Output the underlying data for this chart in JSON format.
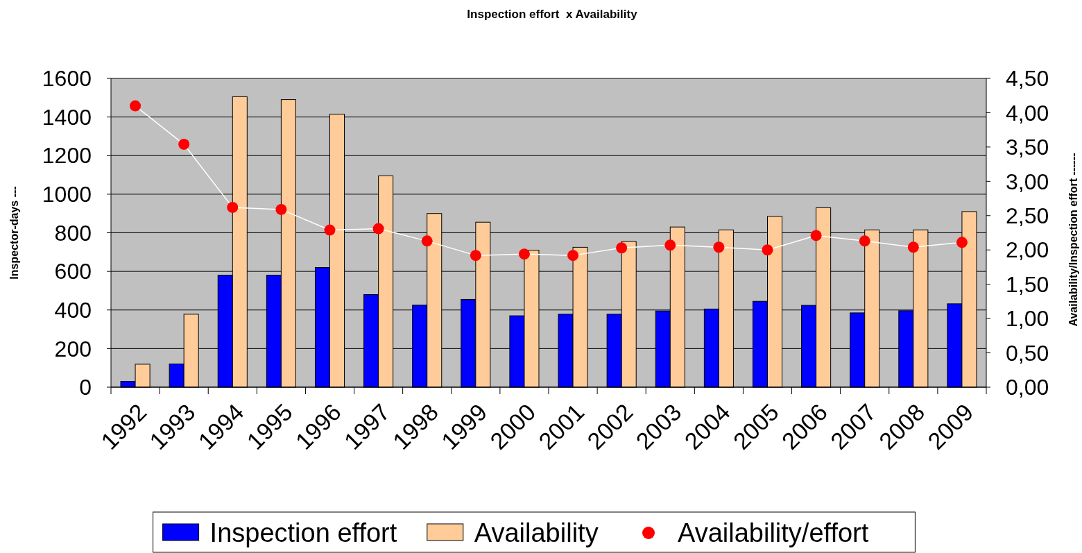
{
  "chart_data": {
    "type": "bar",
    "title": "Inspection effort  x Availability",
    "ylabel": "Inspector-days ---",
    "y2label": "Availability/Inspection effort ------",
    "categories": [
      "1992",
      "1993",
      "1994",
      "1995",
      "1996",
      "1997",
      "1998",
      "1999",
      "2000",
      "2001",
      "2002",
      "2003",
      "2004",
      "2005",
      "2006",
      "2007",
      "2008",
      "2009"
    ],
    "series": [
      {
        "name": "Inspection effort",
        "color": "#0000ff",
        "values": [
          30,
          120,
          580,
          580,
          620,
          480,
          425,
          455,
          370,
          378,
          378,
          395,
          405,
          445,
          424,
          385,
          396,
          432
        ]
      },
      {
        "name": "Availability",
        "color": "#ffcc99",
        "values": [
          119,
          378,
          1505,
          1490,
          1415,
          1095,
          900,
          855,
          710,
          725,
          755,
          830,
          815,
          885,
          930,
          815,
          815,
          910
        ]
      },
      {
        "name": "Availability/effort",
        "type": "line",
        "axis": "y2",
        "color": "#ff0000",
        "marker": "circle",
        "values": [
          4.1,
          3.54,
          2.62,
          2.59,
          2.29,
          2.31,
          2.13,
          1.92,
          1.94,
          1.92,
          2.03,
          2.07,
          2.04,
          2.0,
          2.21,
          2.13,
          2.04,
          2.11
        ]
      }
    ],
    "ylim": [
      0,
      1600
    ],
    "yticks": [
      0,
      200,
      400,
      600,
      800,
      1000,
      1200,
      1400,
      1600
    ],
    "y2lim": [
      0,
      4.5
    ],
    "y2ticks": [
      {
        "value": 0,
        "label": "0,00"
      },
      {
        "value": 0.5,
        "label": "0,50"
      },
      {
        "value": 1,
        "label": "1,00"
      },
      {
        "value": 1.5,
        "label": "1,50"
      },
      {
        "value": 2,
        "label": "2,00"
      },
      {
        "value": 2.5,
        "label": "2,50"
      },
      {
        "value": 3,
        "label": "3,00"
      },
      {
        "value": 3.5,
        "label": "3,50"
      },
      {
        "value": 4,
        "label": "4,00"
      },
      {
        "value": 4.5,
        "label": "4,50"
      }
    ],
    "grid": "y",
    "legend": "bottom"
  }
}
